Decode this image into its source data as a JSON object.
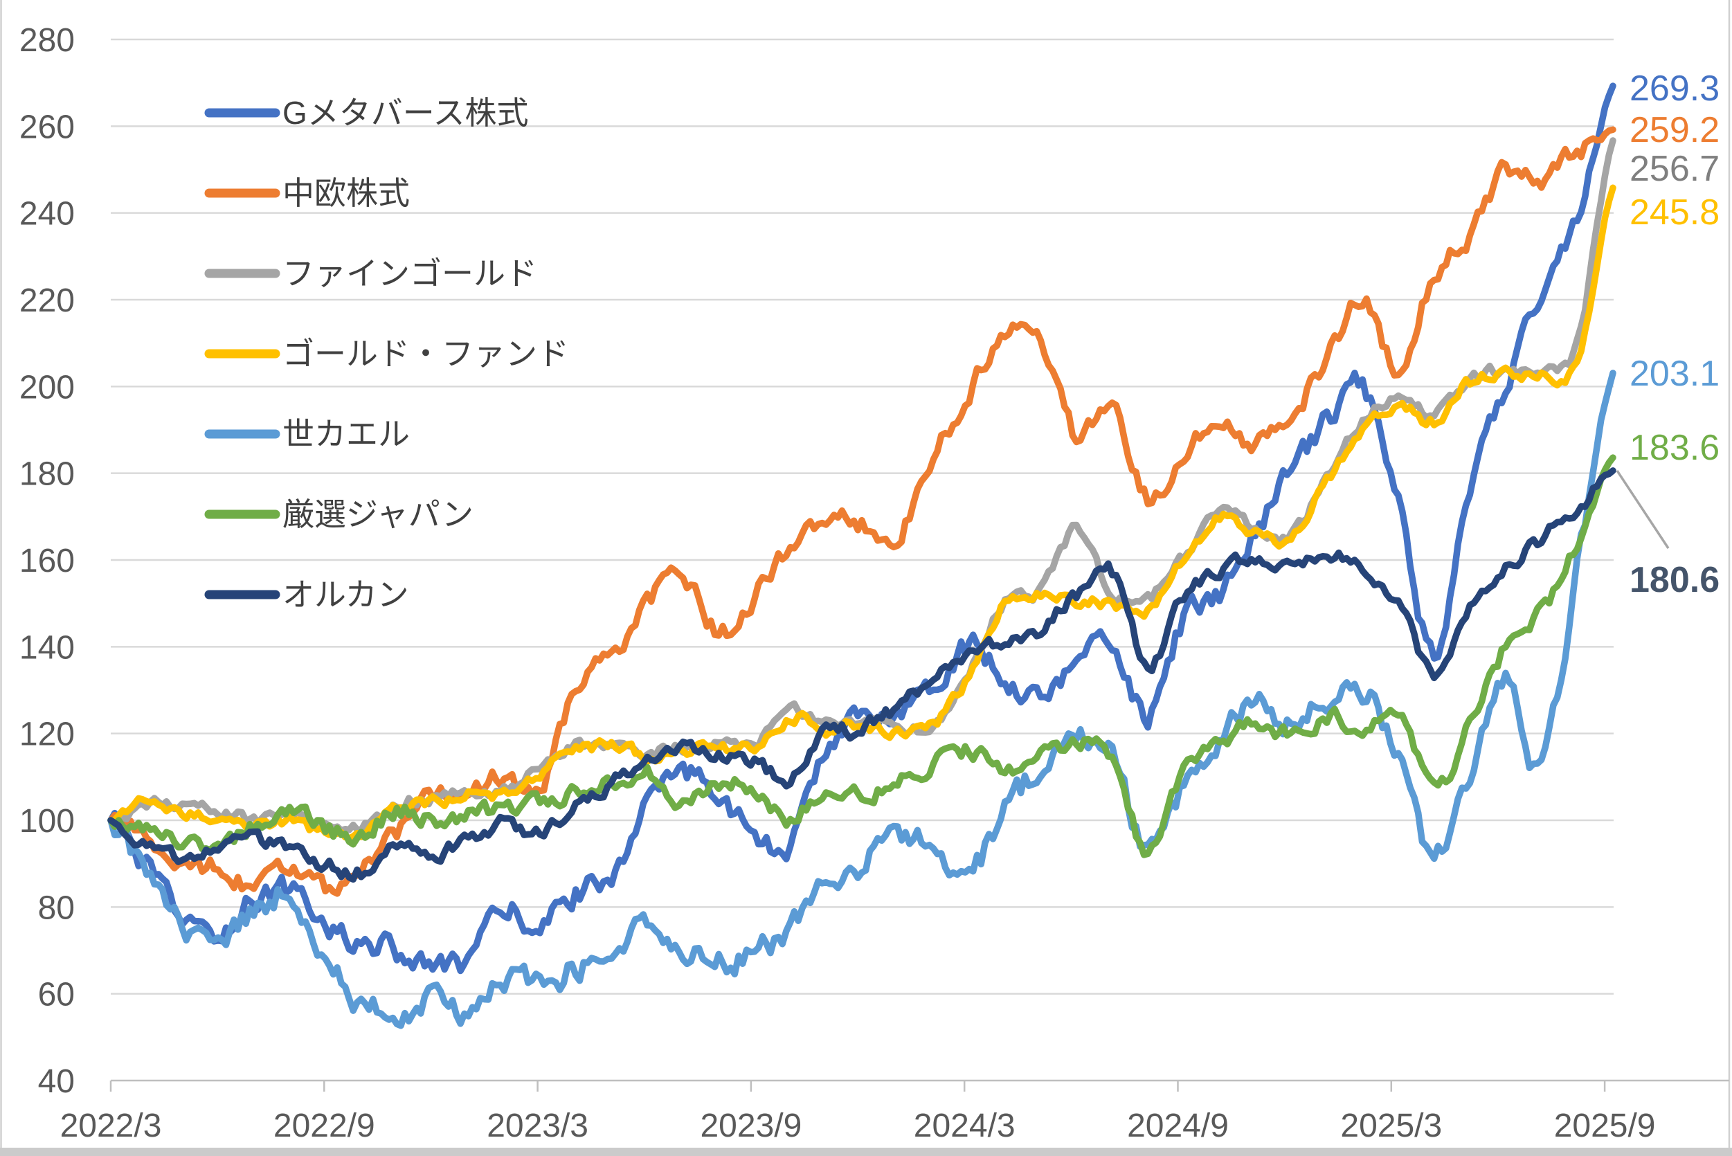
{
  "chart_data": {
    "type": "line",
    "title": "",
    "subtitle": "",
    "index_base_note": "all series indexed to 100 at 2022/3",
    "grid": "horizontal",
    "legend_position": "inside-top-left",
    "colors": {
      "grid_line": "#D9D9D9",
      "axis_line": "#BFBFBF",
      "axis_text": "#595959",
      "legend_text": "#404040",
      "frame_border": "#D0D0D0",
      "leader_line": "#A6A6A6"
    },
    "y_axis": {
      "min": 40,
      "max": 280,
      "step": 20,
      "tick_labels": [
        "280",
        "260",
        "240",
        "220",
        "200",
        "180",
        "160",
        "140",
        "120",
        "100",
        "80",
        "60",
        "40"
      ]
    },
    "x_axis": {
      "tick_labels": [
        "2022/3",
        "2022/9",
        "2023/3",
        "2023/9",
        "2024/3",
        "2024/9",
        "2025/3",
        "2025/9"
      ]
    },
    "months": [
      "2022/3",
      "2022/4",
      "2022/5",
      "2022/6",
      "2022/7",
      "2022/8",
      "2022/9",
      "2022/10",
      "2022/11",
      "2022/12",
      "2023/1",
      "2023/2",
      "2023/3",
      "2023/4",
      "2023/5",
      "2023/6",
      "2023/7",
      "2023/8",
      "2023/9",
      "2023/10",
      "2023/11",
      "2023/12",
      "2024/1",
      "2024/2",
      "2024/3",
      "2024/4",
      "2024/5",
      "2024/6",
      "2024/7",
      "2024/8",
      "2024/9",
      "2024/10",
      "2024/11",
      "2024/12",
      "2025/1",
      "2025/2",
      "2025/3",
      "2025/4",
      "2025/5",
      "2025/6",
      "2025/7",
      "2025/8",
      "2025/9"
    ],
    "series": [
      {
        "id": "g-metaverse",
        "name": "Gメタバース株式",
        "color": "#4472C4",
        "end_label": "269.3",
        "end_label_color": "#4472C4",
        "end_label_bold": false,
        "values": [
          100,
          89,
          77,
          74,
          82,
          84,
          76,
          72,
          70,
          66,
          68,
          79,
          76,
          83,
          88,
          103,
          110,
          107,
          96,
          94,
          117,
          123,
          126,
          132,
          140,
          133,
          129,
          136,
          141,
          124,
          146,
          152,
          166,
          180,
          192,
          200,
          175,
          138,
          175,
          200,
          222,
          240,
          269.3
        ]
      },
      {
        "id": "chuo-kabushiki",
        "name": "中欧株式",
        "color": "#ED7D31",
        "end_label": "259.2",
        "end_label_color": "#ED7D31",
        "end_label_bold": false,
        "values": [
          100,
          96,
          88,
          90,
          85,
          89,
          84,
          88,
          97,
          106,
          108,
          110,
          108,
          130,
          138,
          150,
          156,
          143,
          152,
          163,
          170,
          168,
          166,
          184,
          199,
          211,
          210,
          188,
          196,
          174,
          186,
          190,
          187,
          194,
          206,
          221,
          204,
          226,
          235,
          250,
          247,
          254,
          259.2
        ]
      },
      {
        "id": "fine-gold",
        "name": "ファインゴールド",
        "color": "#A5A5A5",
        "end_label": "256.7",
        "end_label_color": "#7F7F7F",
        "end_label_bold": false,
        "values": [
          100,
          104,
          103,
          102,
          100,
          101,
          98,
          98,
          104,
          105,
          107,
          107,
          112,
          117,
          118,
          116,
          117,
          118,
          118,
          125,
          123,
          123,
          121,
          123,
          134,
          151,
          153,
          167,
          152,
          151,
          161,
          171,
          167,
          166,
          179,
          192,
          198,
          194,
          202,
          204,
          203,
          210,
          256.7
        ]
      },
      {
        "id": "gold-fund",
        "name": "ゴールド・ファンド",
        "color": "#FFC000",
        "end_label": "245.8",
        "end_label_color": "#FFC000",
        "end_label_bold": false,
        "values": [
          100,
          104,
          102,
          101,
          99,
          100,
          97,
          97,
          103,
          104,
          106,
          106,
          111,
          116,
          117,
          115,
          116,
          117,
          117,
          124,
          121,
          122,
          120,
          122,
          133,
          150,
          152,
          151,
          150,
          148,
          160,
          170,
          166,
          165,
          178,
          190,
          196,
          192,
          201,
          203,
          202,
          206,
          245.8
        ]
      },
      {
        "id": "yo-kaeru",
        "name": "世カエル",
        "color": "#5B9BD5",
        "end_label": "203.1",
        "end_label_color": "#5B9BD5",
        "end_label_bold": false,
        "values": [
          100,
          88,
          76,
          72,
          78,
          83,
          68,
          58,
          56,
          58,
          56,
          63,
          62,
          66,
          70,
          77,
          71,
          67,
          70,
          75,
          86,
          90,
          96,
          93,
          88,
          102,
          112,
          118,
          114,
          92,
          108,
          118,
          128,
          122,
          128,
          130,
          115,
          91,
          112,
          132,
          112,
          158,
          203.1
        ]
      },
      {
        "id": "gensen-japan",
        "name": "厳選ジャパン",
        "color": "#70AD47",
        "end_label": "183.6",
        "end_label_color": "#70AD47",
        "end_label_bold": false,
        "values": [
          100,
          99,
          96,
          94,
          99,
          103,
          98,
          97,
          102,
          100,
          101,
          103,
          104,
          106,
          109,
          111,
          104,
          109,
          107,
          100,
          108,
          106,
          109,
          113,
          116,
          112,
          115,
          118,
          114,
          92,
          112,
          118,
          122,
          120,
          124,
          122,
          126,
          107,
          122,
          140,
          148,
          164,
          183.6
        ]
      },
      {
        "id": "all-country",
        "name": "オルカン",
        "color": "#264478",
        "end_label": "180.6",
        "end_label_color": "#44546A",
        "end_label_bold": true,
        "has_leader_line": true,
        "values": [
          100,
          95,
          91,
          94,
          96,
          93,
          90,
          88,
          95,
          92,
          96,
          99,
          97,
          104,
          109,
          114,
          117,
          115,
          113,
          110,
          120,
          121,
          126,
          133,
          139,
          141,
          144,
          152,
          157,
          136,
          152,
          157,
          160,
          159,
          162,
          159,
          150,
          134,
          150,
          158,
          165,
          172,
          180.6
        ]
      }
    ]
  }
}
